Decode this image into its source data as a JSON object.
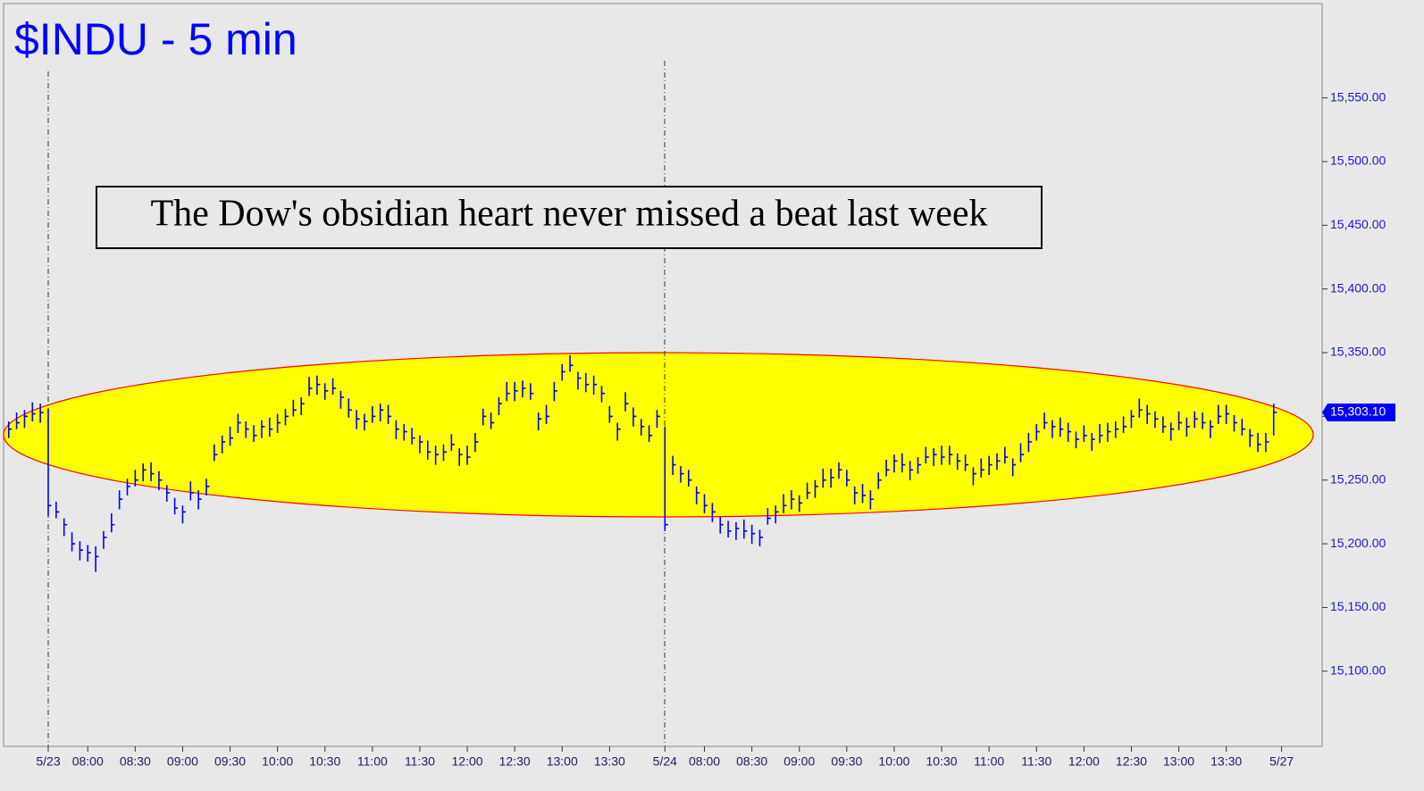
{
  "chart_data": {
    "type": "ohlc",
    "title": "$INDU - 5 min",
    "annotation": "The Dow's obsidian heart never missed a beat last week",
    "color": "#0000ff",
    "categories": [
      null,
      null,
      null,
      null,
      null,
      "5/23",
      null,
      null,
      null,
      null,
      "08:00",
      null,
      null,
      null,
      null,
      null,
      "08:30",
      null,
      null,
      null,
      null,
      null,
      "09:00",
      null,
      null,
      null,
      null,
      null,
      "09:30",
      null,
      null,
      null,
      null,
      null,
      "10:00",
      null,
      null,
      null,
      null,
      null,
      "10:30",
      null,
      null,
      null,
      null,
      null,
      "11:00",
      null,
      null,
      null,
      null,
      null,
      "11:30",
      null,
      null,
      null,
      null,
      null,
      "12:00",
      null,
      null,
      null,
      null,
      null,
      "12:30",
      null,
      null,
      null,
      null,
      null,
      "13:00",
      null,
      null,
      null,
      null,
      null,
      "13:30",
      null,
      null,
      null,
      null,
      null,
      null,
      "5/24",
      null,
      null,
      null,
      null,
      "08:00",
      null,
      null,
      null,
      null,
      null,
      "08:30",
      null,
      null,
      null,
      null,
      null,
      "09:00",
      null,
      null,
      null,
      null,
      null,
      "09:30",
      null,
      null,
      null,
      null,
      null,
      "10:00",
      null,
      null,
      null,
      null,
      null,
      "10:30",
      null,
      null,
      null,
      null,
      null,
      "11:00",
      null,
      null,
      null,
      null,
      null,
      "11:30",
      null,
      null,
      null,
      null,
      null,
      "12:00",
      null,
      null,
      null,
      null,
      null,
      "12:30",
      null,
      null,
      null,
      null,
      null,
      "13:00",
      null,
      null,
      null,
      null,
      null,
      "13:30",
      null,
      null,
      null,
      null,
      null,
      null,
      "5/27"
    ],
    "high": [
      15296,
      15303,
      15305,
      15311,
      15310,
      15306,
      15233,
      15220,
      15209,
      15202,
      15199,
      15198,
      15210,
      15224,
      15242,
      15251,
      15258,
      15263,
      15264,
      15257,
      15246,
      15236,
      15230,
      15249,
      15242,
      15251,
      15278,
      15285,
      15292,
      15302,
      15296,
      15293,
      15297,
      15299,
      15302,
      15306,
      15313,
      15315,
      15331,
      15332,
      15326,
      15330,
      15320,
      15314,
      15305,
      15302,
      15308,
      15310,
      15309,
      15297,
      15294,
      15291,
      15285,
      15281,
      15277,
      15278,
      15286,
      15275,
      15277,
      15287,
      15306,
      15303,
      15315,
      15327,
      15327,
      15328,
      15326,
      15303,
      15309,
      15327,
      15341,
      15348,
      15335,
      15334,
      15332,
      15324,
      15308,
      15295,
      15319,
      15307,
      15298,
      15293,
      15305,
      15292,
      15269,
      15261,
      15258,
      15245,
      15239,
      15232,
      15221,
      15218,
      15217,
      15219,
      15215,
      15211,
      15228,
      15230,
      15239,
      15242,
      15238,
      15248,
      15250,
      15259,
      15259,
      15264,
      15258,
      15245,
      15247,
      15242,
      15256,
      15266,
      15270,
      15271,
      15265,
      15268,
      15276,
      15275,
      15277,
      15277,
      15271,
      15270,
      15260,
      15267,
      15269,
      15271,
      15276,
      15267,
      15279,
      15287,
      15294,
      15303,
      15297,
      15299,
      15295,
      15288,
      15293,
      15287,
      15294,
      15295,
      15296,
      15300,
      15305,
      15314,
      15309,
      15304,
      15300,
      15295,
      15304,
      15299,
      15304,
      15303,
      15297,
      15309,
      15309,
      15301,
      15298,
      15290,
      15287,
      15287,
      15310,
      null
    ],
    "low": [
      15283,
      15290,
      15291,
      15296,
      15295,
      15222,
      15220,
      15206,
      15194,
      15187,
      15186,
      15178,
      15196,
      15209,
      15227,
      15238,
      15245,
      15249,
      15249,
      15242,
      15233,
      15223,
      15216,
      15234,
      15227,
      15238,
      15265,
      15271,
      15277,
      15287,
      15283,
      15280,
      15283,
      15284,
      15287,
      15293,
      15300,
      15301,
      15316,
      15317,
      15313,
      15317,
      15306,
      15299,
      15290,
      15289,
      15295,
      15296,
      15294,
      15282,
      15281,
      15278,
      15271,
      15266,
      15262,
      15265,
      15273,
      15261,
      15262,
      15272,
      15293,
      15290,
      15301,
      15312,
      15312,
      15315,
      15313,
      15289,
      15294,
      15312,
      15328,
      15335,
      15321,
      15319,
      15317,
      15311,
      15295,
      15281,
      15304,
      15292,
      15285,
      15280,
      15291,
      15210,
      15254,
      15248,
      15245,
      15231,
      15224,
      15217,
      15208,
      15205,
      15203,
      15204,
      15200,
      15198,
      15215,
      15216,
      15224,
      15227,
      15225,
      15235,
      15236,
      15244,
      15244,
      15251,
      15245,
      15231,
      15232,
      15227,
      15243,
      15253,
      15256,
      15256,
      15250,
      15255,
      15263,
      15261,
      15262,
      15262,
      15258,
      15257,
      15246,
      15252,
      15254,
      15258,
      15263,
      15253,
      15264,
      15272,
      15281,
      15290,
      15283,
      15284,
      15280,
      15275,
      15280,
      15273,
      15279,
      15280,
      15283,
      15287,
      15291,
      15299,
      15294,
      15291,
      15287,
      15281,
      15289,
      15284,
      15291,
      15290,
      15283,
      15294,
      15294,
      15288,
      15285,
      15276,
      15272,
      15272,
      15285,
      null
    ],
    "close": [
      15290,
      15295,
      15300,
      15302,
      15303,
      15230,
      15225,
      15215,
      15200,
      15195,
      15193,
      15190,
      15205,
      15215,
      15235,
      15245,
      15250,
      15258,
      15255,
      15250,
      15240,
      15228,
      15225,
      15240,
      15235,
      15245,
      15270,
      15280,
      15283,
      15295,
      15290,
      15285,
      15292,
      15290,
      15295,
      15300,
      15305,
      15310,
      15322,
      15325,
      15320,
      15322,
      15315,
      15305,
      15298,
      15296,
      15300,
      15305,
      15300,
      15290,
      15288,
      15283,
      15280,
      15272,
      15270,
      15272,
      15278,
      15270,
      15268,
      15280,
      15300,
      15295,
      15310,
      15318,
      15320,
      15322,
      15318,
      15298,
      15300,
      15320,
      15335,
      15340,
      15330,
      15325,
      15325,
      15318,
      15300,
      15290,
      15310,
      15300,
      15292,
      15285,
      15300,
      15215,
      15262,
      15255,
      15250,
      15240,
      15230,
      15225,
      15215,
      15210,
      15212,
      15210,
      15208,
      15205,
      15220,
      15225,
      15230,
      15235,
      15232,
      15240,
      15245,
      15250,
      15252,
      15258,
      15250,
      15240,
      15238,
      15235,
      15250,
      15258,
      15265,
      15262,
      15258,
      15262,
      15268,
      15270,
      15268,
      15270,
      15265,
      15262,
      15255,
      15258,
      15262,
      15265,
      15268,
      15262,
      15270,
      15280,
      15288,
      15295,
      15292,
      15290,
      15288,
      15282,
      15285,
      15282,
      15285,
      15288,
      15290,
      15292,
      15300,
      15305,
      15302,
      15298,
      15292,
      15290,
      15295,
      15292,
      15298,
      15295,
      15292,
      15300,
      15302,
      15295,
      15290,
      15285,
      15278,
      15280,
      15303.1,
      null
    ],
    "last_price": {
      "value": 15303.1,
      "label": "15,303.10"
    },
    "ylim": [
      15041,
      15624
    ],
    "yticks": [
      {
        "value": 15100,
        "label": "15,100.00"
      },
      {
        "value": 15150,
        "label": "15,150.00"
      },
      {
        "value": 15200,
        "label": "15,200.00"
      },
      {
        "value": 15250,
        "label": "15,250.00"
      },
      {
        "value": 15300,
        "label": "15,300.00"
      },
      {
        "value": 15350,
        "label": "15,350.00"
      },
      {
        "value": 15400,
        "label": "15,400.00"
      },
      {
        "value": 15450,
        "label": "15,450.00"
      },
      {
        "value": 15500,
        "label": "15,500.00"
      },
      {
        "value": 15550,
        "label": "15,550.00"
      }
    ]
  }
}
